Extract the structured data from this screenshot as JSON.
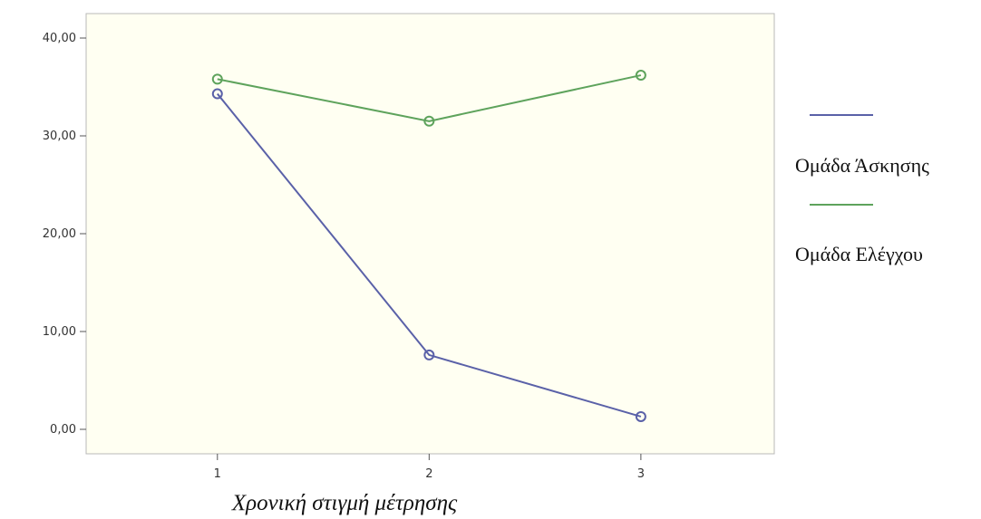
{
  "chart_data": {
    "type": "line",
    "title": "",
    "xlabel": "Χρονική στιγμή μέτρησης",
    "ylabel": "",
    "x": [
      1,
      2,
      3
    ],
    "x_tick_labels": [
      "1",
      "2",
      "3"
    ],
    "xlim": [
      0.38,
      3.63
    ],
    "ylim": [
      -2.5,
      42.5
    ],
    "y_ticks": [
      0,
      10,
      20,
      30,
      40
    ],
    "y_tick_labels": [
      "0,00",
      "10,00",
      "20,00",
      "30,00",
      "40,00"
    ],
    "grid": false,
    "legend_position": "right",
    "series": [
      {
        "name": "Ομάδα Άσκησης",
        "values": [
          34.3,
          7.6,
          1.3
        ],
        "color": "#5a61a8"
      },
      {
        "name": "Ομάδα Ελέγχου",
        "values": [
          35.8,
          31.5,
          36.2
        ],
        "color": "#5ea35c"
      }
    ]
  }
}
